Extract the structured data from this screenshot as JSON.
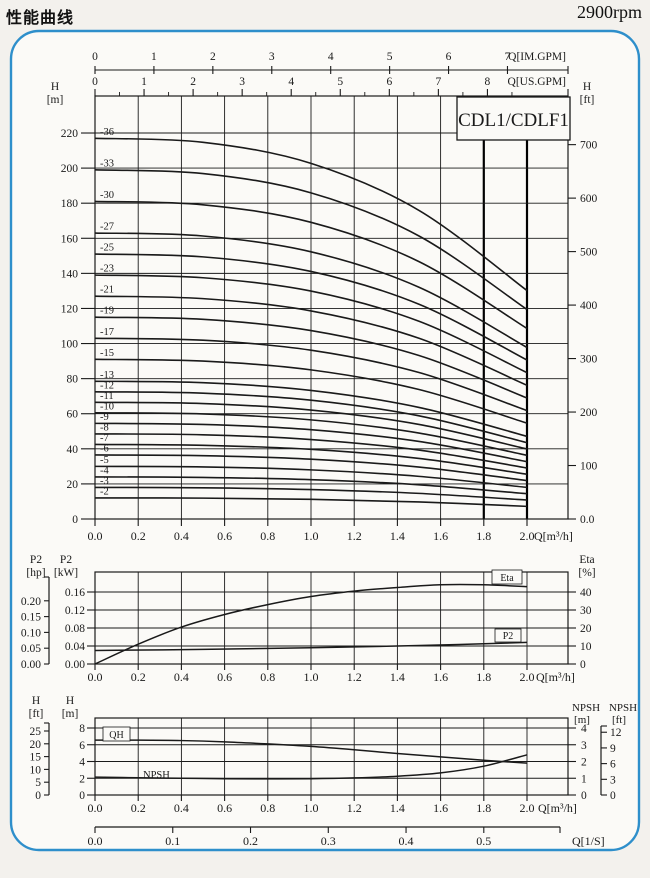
{
  "header": {
    "title": "性能曲线",
    "rpm": "2900rpm"
  },
  "model_label": "CDL1/CDLF1",
  "colors": {
    "frame_blue": "#2e8fcb",
    "line": "#1a1a1a",
    "paper": "#fbfaf7"
  },
  "chart_data": [
    {
      "type": "line",
      "name": "head-capacity-curves",
      "title": "CDL1/CDLF1",
      "xlabel": "Q[m³/h]",
      "x_ticks": [
        "0.0",
        "0.2",
        "0.4",
        "0.6",
        "0.8",
        "1.0",
        "1.2",
        "1.4",
        "1.6",
        "1.8",
        "2.0"
      ],
      "xlim": [
        0,
        2.19
      ],
      "y_left": {
        "title": [
          "H",
          "[m]"
        ],
        "ticks": [
          "0",
          "20",
          "40",
          "60",
          "80",
          "100",
          "120",
          "140",
          "160",
          "180",
          "200",
          "220"
        ],
        "lim": [
          0,
          241
        ]
      },
      "y_right": {
        "title": [
          "H",
          "[ft]"
        ],
        "ticks": [
          "0.0",
          "100",
          "200",
          "300",
          "400",
          "500",
          "600",
          "700"
        ]
      },
      "x_top": [
        {
          "title": "Q[IM.GPM]",
          "ticks": [
            "0",
            "1",
            "2",
            "3",
            "4",
            "5",
            "6",
            "7"
          ],
          "m3h_per_unit": 0.2728
        },
        {
          "title": "Q[US.GPM]",
          "ticks": [
            "0",
            "1",
            "2",
            "3",
            "4",
            "5",
            "6",
            "7",
            "8"
          ],
          "m3h_per_unit": 0.2271
        }
      ],
      "q": [
        0,
        0.5,
        1.0,
        1.5,
        2.0
      ],
      "series": [
        {
          "label": "-36",
          "H_m": [
            217,
            214.7,
            202.7,
            175.9,
            130.2
          ]
        },
        {
          "label": "-33",
          "H_m": [
            199,
            196.9,
            185.9,
            161.3,
            119.4
          ]
        },
        {
          "label": "-30",
          "H_m": [
            181,
            179.1,
            169.1,
            146.7,
            108.6
          ]
        },
        {
          "label": "-27",
          "H_m": [
            163,
            161.3,
            152.3,
            132.1,
            97.8
          ]
        },
        {
          "label": "-25",
          "H_m": [
            151,
            149.4,
            141.1,
            122.4,
            90.6
          ]
        },
        {
          "label": "-23",
          "H_m": [
            139,
            137.5,
            129.9,
            112.7,
            83.4
          ]
        },
        {
          "label": "-21",
          "H_m": [
            127,
            125.6,
            118.6,
            103.0,
            76.2
          ]
        },
        {
          "label": "-19",
          "H_m": [
            115,
            113.8,
            107.4,
            93.2,
            69.0
          ]
        },
        {
          "label": "-17",
          "H_m": [
            103,
            101.9,
            96.2,
            83.5,
            61.8
          ]
        },
        {
          "label": "-15",
          "H_m": [
            91,
            90.0,
            85.0,
            73.8,
            54.6
          ]
        },
        {
          "label": "-13",
          "H_m": [
            78.5,
            77.7,
            73.3,
            63.6,
            47.1
          ]
        },
        {
          "label": "-12",
          "H_m": [
            72.5,
            71.7,
            67.7,
            58.8,
            43.5
          ]
        },
        {
          "label": "-11",
          "H_m": [
            66.5,
            65.8,
            62.1,
            53.9,
            39.9
          ]
        },
        {
          "label": "-10",
          "H_m": [
            60.5,
            59.9,
            56.5,
            49.0,
            36.3
          ]
        },
        {
          "label": "-9",
          "H_m": [
            54.5,
            53.9,
            50.9,
            44.2,
            32.7
          ]
        },
        {
          "label": "-8",
          "H_m": [
            48.5,
            48.0,
            45.3,
            39.3,
            29.1
          ]
        },
        {
          "label": "-7",
          "H_m": [
            42.5,
            42.0,
            39.7,
            34.5,
            25.5
          ]
        },
        {
          "label": "-6",
          "H_m": [
            36.5,
            36.1,
            34.1,
            29.6,
            21.9
          ]
        },
        {
          "label": "-5",
          "H_m": [
            30,
            29.7,
            28.0,
            24.3,
            18.0
          ]
        },
        {
          "label": "-4",
          "H_m": [
            24,
            23.7,
            22.4,
            19.5,
            14.4
          ]
        },
        {
          "label": "-3",
          "H_m": [
            18,
            17.8,
            16.8,
            14.6,
            10.8
          ]
        },
        {
          "label": "-2",
          "H_m": [
            12,
            11.9,
            11.2,
            9.7,
            7.2
          ]
        }
      ]
    },
    {
      "type": "line",
      "name": "power-and-efficiency",
      "xlabel": "Q[m³/h]",
      "x_ticks": [
        "0.0",
        "0.2",
        "0.4",
        "0.6",
        "0.8",
        "1.0",
        "1.2",
        "1.4",
        "1.6",
        "1.8",
        "2.0"
      ],
      "y_left_hp": {
        "title": [
          "P2",
          "[hp]"
        ],
        "ticks": [
          "0.00",
          "0.05",
          "0.10",
          "0.15",
          "0.20"
        ]
      },
      "y_left_kw": {
        "title": [
          "P2",
          "[kW]"
        ],
        "ticks": [
          "0.00",
          "0.04",
          "0.08",
          "0.12",
          "0.16"
        ]
      },
      "y_right_eta": {
        "title": [
          "Eta",
          "[%]"
        ],
        "ticks": [
          "0",
          "10",
          "20",
          "30",
          "40"
        ]
      },
      "series": [
        {
          "label": "Eta",
          "unit": "%",
          "boxed": true,
          "q": [
            0,
            0.2,
            0.4,
            0.6,
            0.8,
            1.0,
            1.2,
            1.4,
            1.6,
            1.8,
            2.0
          ],
          "values": [
            0,
            11,
            20.5,
            27.5,
            33,
            37.5,
            40.5,
            42.5,
            44,
            44,
            43
          ]
        },
        {
          "label": "P2",
          "unit": "kW",
          "boxed": true,
          "q": [
            0,
            0.5,
            1.0,
            1.5,
            2.0
          ],
          "values": [
            0.03,
            0.0325,
            0.036,
            0.041,
            0.048
          ]
        }
      ]
    },
    {
      "type": "line",
      "name": "qh-and-npsh",
      "xlabel": "Q[m³/h]",
      "x_ticks": [
        "0.0",
        "0.2",
        "0.4",
        "0.6",
        "0.8",
        "1.0",
        "1.2",
        "1.4",
        "1.6",
        "1.8",
        "2.0"
      ],
      "x_bottom": {
        "title": "Q[1/S]",
        "ticks": [
          "0.0",
          "0.1",
          "0.2",
          "0.3",
          "0.4",
          "0.5"
        ],
        "m3h_per_unit": 3.6
      },
      "y_left_ft": {
        "title": [
          "H",
          "[ft]"
        ],
        "ticks": [
          "0",
          "5",
          "10",
          "15",
          "20",
          "25"
        ]
      },
      "y_left_m": {
        "title": [
          "H",
          "[m]"
        ],
        "ticks": [
          "0",
          "2",
          "4",
          "6",
          "8"
        ]
      },
      "y_right_npsh_m": {
        "title": [
          "NPSH",
          "[m]"
        ],
        "ticks": [
          "0",
          "1",
          "2",
          "3",
          "4"
        ]
      },
      "y_right_npsh_ft": {
        "title": [
          "NPSH",
          "[ft]"
        ],
        "ticks": [
          "0",
          "3",
          "6",
          "9",
          "12"
        ]
      },
      "series": [
        {
          "label": "QH",
          "unit": "m",
          "boxed": true,
          "q": [
            0,
            0.2,
            0.4,
            0.6,
            0.8,
            1.0,
            1.2,
            1.4,
            1.6,
            1.8,
            2.0
          ],
          "values": [
            6.55,
            6.55,
            6.5,
            6.35,
            6.1,
            5.8,
            5.4,
            4.95,
            4.55,
            4.15,
            3.8
          ]
        },
        {
          "label": "NPSH",
          "unit": "m",
          "boxed": false,
          "q": [
            0,
            0.2,
            0.4,
            0.6,
            0.8,
            1.0,
            1.2,
            1.4,
            1.6,
            1.8,
            2.0
          ],
          "values": [
            1.07,
            1.03,
            1.0,
            0.97,
            0.96,
            0.97,
            1.02,
            1.12,
            1.32,
            1.72,
            2.4
          ]
        }
      ]
    }
  ]
}
